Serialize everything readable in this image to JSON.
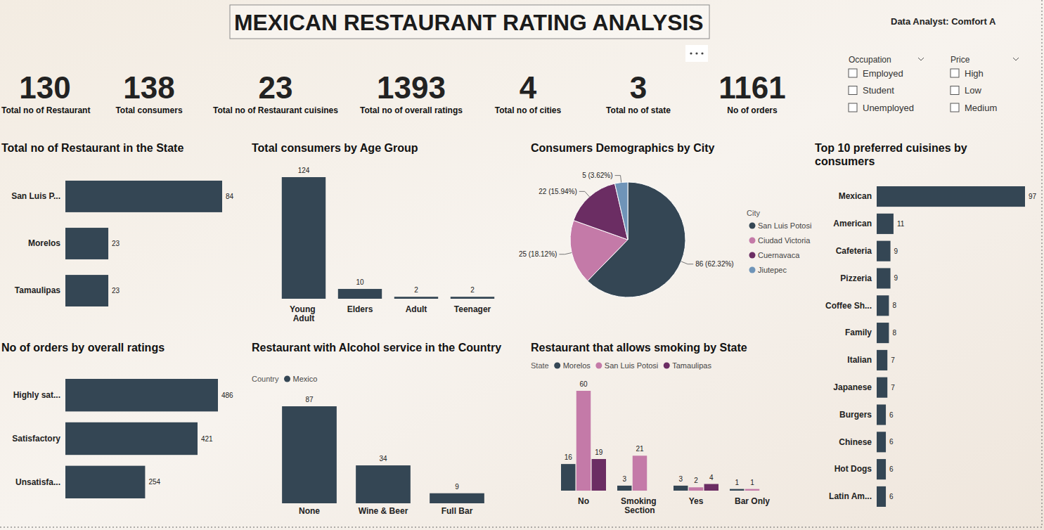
{
  "header": {
    "title": "MEXICAN RESTAURANT RATING ANALYSIS",
    "analyst": "Data Analyst: Comfort A"
  },
  "kpis": [
    {
      "value": 130,
      "label": "Total no of Restaurant"
    },
    {
      "value": 138,
      "label": "Total consumers"
    },
    {
      "value": 23,
      "label": "Total no of Restaurant cuisines"
    },
    {
      "value": 1393,
      "label": "Total no of overall ratings"
    },
    {
      "value": 4,
      "label": "Total no of cities"
    },
    {
      "value": 3,
      "label": "Total no of state"
    },
    {
      "value": 1161,
      "label": "No of orders"
    }
  ],
  "filters": [
    {
      "title": "Occupation",
      "options": [
        "Employed",
        "Student",
        "Unemployed"
      ]
    },
    {
      "title": "Price",
      "options": [
        "High",
        "Low",
        "Medium"
      ]
    }
  ],
  "chart_data": [
    {
      "type": "bar",
      "title": "Total no of Restaurant in the State",
      "orientation": "horizontal",
      "categories": [
        "San Luis P...",
        "Morelos",
        "Tamaulipas"
      ],
      "values": [
        84,
        23,
        23
      ],
      "color": "#344654",
      "xlim": [
        0,
        84
      ],
      "data_labels": true,
      "tick_labels": "y"
    },
    {
      "type": "bar",
      "title": "Total consumers by Age Group",
      "categories": [
        "Young Adult",
        "Elders",
        "Adult",
        "Teenager"
      ],
      "values": [
        124,
        10,
        2,
        2
      ],
      "color": "#344654",
      "ylim": [
        0,
        124
      ],
      "data_labels": true,
      "tick_labels": "x"
    },
    {
      "type": "pie",
      "title": "Consumers Demographics by City",
      "categories": [
        "San Luis Potosi",
        "Ciudad Victoria",
        "Cuernavaca",
        "Jiutepec"
      ],
      "values": [
        86,
        25,
        22,
        5
      ],
      "value_labels": [
        "86 (62.32%)",
        "25 (18.12%)",
        "22 (15.94%)",
        "5 (3.62%)"
      ],
      "colors": [
        "#344654",
        "#c47aa8",
        "#6b2d63",
        "#6f94b8"
      ],
      "legend": "right",
      "legend_title": "City",
      "data_labels": true
    },
    {
      "type": "bar",
      "title": "Top 10 preferred cuisines by consumers",
      "orientation": "horizontal",
      "categories": [
        "Mexican",
        "American",
        "Cafeteria",
        "Pizzeria",
        "Coffee Sh...",
        "Family",
        "Italian",
        "Japanese",
        "Burgers",
        "Chinese",
        "Hot Dogs",
        "Latin Am..."
      ],
      "values": [
        97,
        11,
        9,
        9,
        8,
        8,
        7,
        7,
        6,
        6,
        6,
        6
      ],
      "color": "#344654",
      "xlim": [
        0,
        97
      ],
      "data_labels": true,
      "tick_labels": "y"
    },
    {
      "type": "bar",
      "title": "No of orders by overall ratings",
      "orientation": "horizontal",
      "categories": [
        "Highly sat...",
        "Satisfactory",
        "Unsatisfa..."
      ],
      "values": [
        486,
        421,
        254
      ],
      "color": "#344654",
      "xlim": [
        0,
        486
      ],
      "data_labels": true,
      "tick_labels": "y"
    },
    {
      "type": "bar",
      "title": "Restaurant with Alcohol service in the Country",
      "categories": [
        "None",
        "Wine & Beer",
        "Full Bar"
      ],
      "series": [
        {
          "name": "Mexico",
          "color": "#344654",
          "values": [
            87,
            34,
            9
          ]
        }
      ],
      "ylim": [
        0,
        87
      ],
      "legend": "top-left",
      "legend_title": "Country",
      "data_labels": true,
      "tick_labels": "x"
    },
    {
      "type": "bar",
      "title": "Restaurant that allows smoking by State",
      "categories": [
        "No",
        "Smoking Section",
        "Yes",
        "Bar Only"
      ],
      "series": [
        {
          "name": "Morelos",
          "color": "#344654",
          "values": [
            16,
            3,
            3,
            1
          ]
        },
        {
          "name": "San Luis Potosi",
          "color": "#c47aa8",
          "values": [
            60,
            21,
            2,
            1
          ]
        },
        {
          "name": "Tamaulipas",
          "color": "#6b2d63",
          "values": [
            19,
            null,
            4,
            null
          ]
        }
      ],
      "ylim": [
        0,
        60
      ],
      "legend": "top-left",
      "legend_title": "State",
      "data_labels": true,
      "tick_labels": "x"
    }
  ]
}
